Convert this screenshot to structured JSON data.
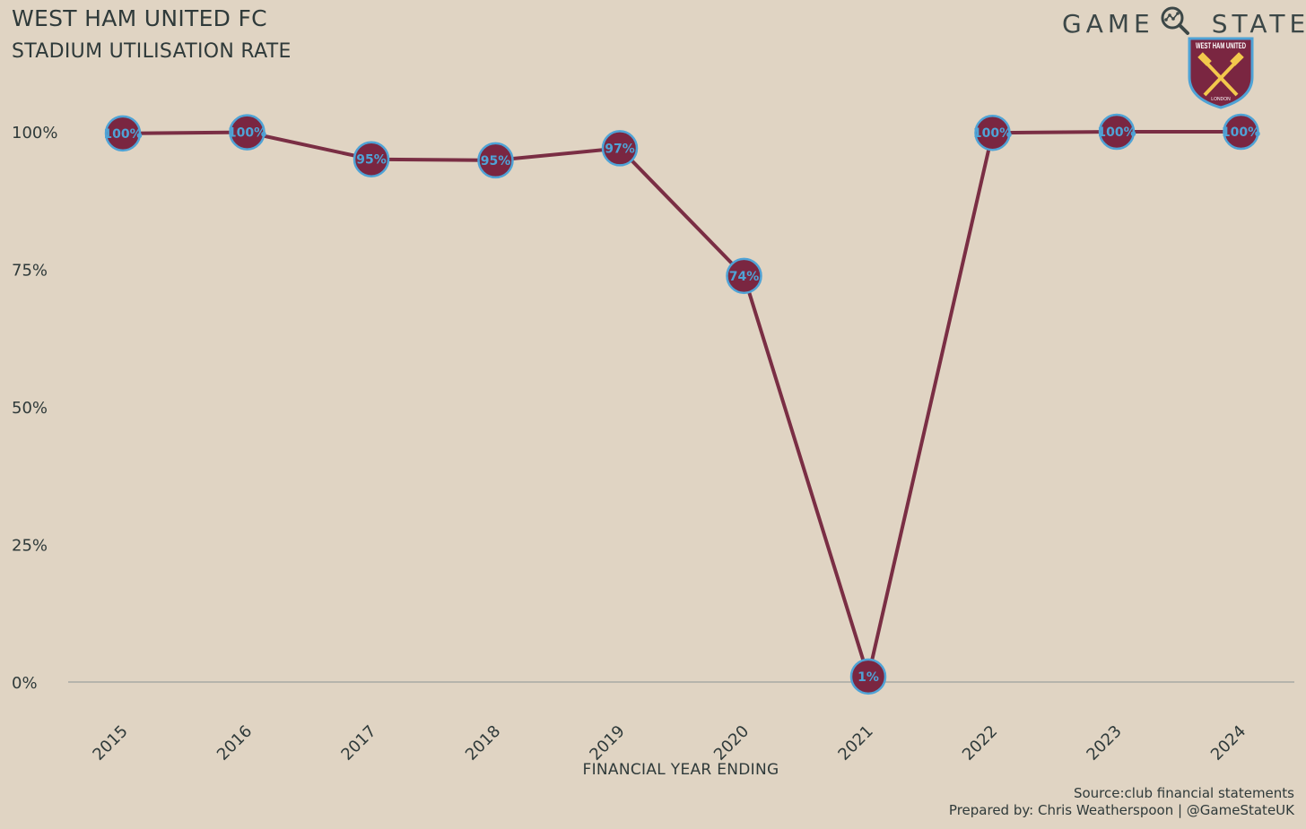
{
  "header": {
    "title": "WEST HAM UNITED FC",
    "subtitle": "STADIUM UTILISATION RATE"
  },
  "brand": {
    "word1": "GAME",
    "word2": "STATE",
    "icon": "magnifier-network-icon",
    "crest_text": "WEST HAM UNITED",
    "crest_sub": "LONDON"
  },
  "footer": {
    "source": "Source:club financial statements",
    "credit": "Prepared by: Chris Weatherspoon | @GameStateUK"
  },
  "colors": {
    "background": "#e0d4c3",
    "line": "#7a2e44",
    "marker_fill": "#7a2641",
    "marker_edge": "#4fa3d6",
    "label": "#4fa3d6",
    "text": "#2f3a3a"
  },
  "chart_data": {
    "type": "line",
    "title": "STADIUM UTILISATION RATE",
    "xlabel": "FINANCIAL YEAR ENDING",
    "ylabel": "",
    "categories": [
      "2015",
      "2016",
      "2017",
      "2018",
      "2019",
      "2020",
      "2021",
      "2022",
      "2023",
      "2024"
    ],
    "values": [
      99.7,
      99.9,
      95.0,
      94.8,
      97.0,
      73.8,
      1.0,
      99.8,
      100.0,
      100.0
    ],
    "data_labels": [
      "100%",
      "100%",
      "95%",
      "95%",
      "97%",
      "74%",
      "1%",
      "100%",
      "100%",
      "100%"
    ],
    "ylim": [
      0,
      100
    ],
    "yticks": [
      0,
      25,
      50,
      75,
      100
    ],
    "ytick_labels": [
      "0%",
      "25%",
      "50%",
      "75%",
      "100%"
    ],
    "grid": false,
    "legend": "none"
  }
}
